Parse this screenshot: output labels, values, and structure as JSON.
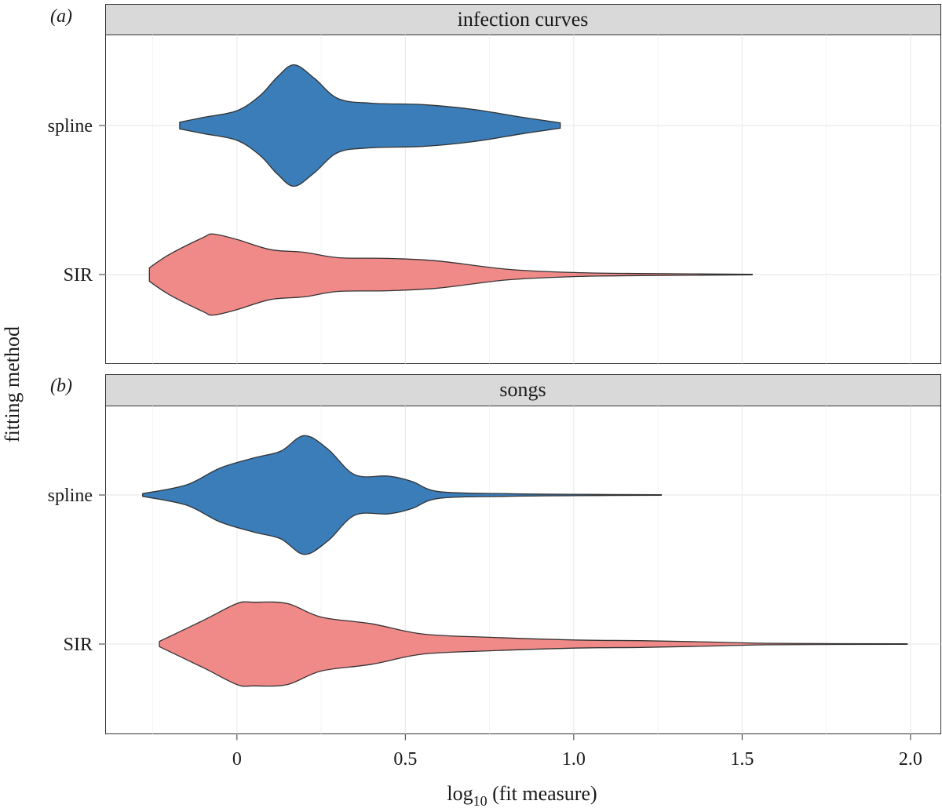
{
  "chart_data": {
    "type": "violin",
    "orientation": "horizontal",
    "xlabel_parts": {
      "prefix": "log",
      "subscript": "10",
      "suffix": " (fit measure)"
    },
    "ylabel": "fitting method",
    "x_ticks": [
      0,
      0.5,
      1.0,
      1.5,
      2.0
    ],
    "x_tick_labels": [
      "0",
      "0.5",
      "1.0",
      "1.5",
      "2.0"
    ],
    "xlim": [
      -0.39,
      2.09
    ],
    "categories": [
      "spline",
      "SIR"
    ],
    "colors": {
      "spline": "#3a7db8",
      "SIR": "#f08a89",
      "outline": "#333333",
      "strip": "#d9d9d9",
      "grid": "#ebebeb"
    },
    "panels": [
      {
        "panel_label": "(a)",
        "title": "infection curves",
        "violins": [
          {
            "category": "spline",
            "min": -0.17,
            "max": 0.96,
            "profile": [
              [
                -0.17,
                0.05
              ],
              [
                -0.1,
                0.12
              ],
              [
                0.0,
                0.22
              ],
              [
                0.07,
                0.45
              ],
              [
                0.12,
                0.72
              ],
              [
                0.17,
                0.9
              ],
              [
                0.23,
                0.7
              ],
              [
                0.3,
                0.4
              ],
              [
                0.4,
                0.33
              ],
              [
                0.55,
                0.31
              ],
              [
                0.7,
                0.24
              ],
              [
                0.85,
                0.12
              ],
              [
                0.96,
                0.04
              ]
            ]
          },
          {
            "category": "SIR",
            "min": -0.26,
            "max": 1.53,
            "profile": [
              [
                -0.26,
                0.1
              ],
              [
                -0.2,
                0.3
              ],
              [
                -0.1,
                0.55
              ],
              [
                -0.07,
                0.6
              ],
              [
                0.0,
                0.52
              ],
              [
                0.1,
                0.37
              ],
              [
                0.2,
                0.33
              ],
              [
                0.3,
                0.25
              ],
              [
                0.45,
                0.24
              ],
              [
                0.6,
                0.2
              ],
              [
                0.8,
                0.08
              ],
              [
                1.0,
                0.03
              ],
              [
                1.2,
                0.015
              ],
              [
                1.53,
                0.005
              ]
            ]
          }
        ]
      },
      {
        "panel_label": "(b)",
        "title": "songs",
        "violins": [
          {
            "category": "spline",
            "min": -0.28,
            "max": 1.26,
            "profile": [
              [
                -0.28,
                0.02
              ],
              [
                -0.15,
                0.15
              ],
              [
                -0.05,
                0.4
              ],
              [
                0.05,
                0.55
              ],
              [
                0.13,
                0.65
              ],
              [
                0.2,
                0.88
              ],
              [
                0.27,
                0.68
              ],
              [
                0.35,
                0.3
              ],
              [
                0.45,
                0.28
              ],
              [
                0.52,
                0.2
              ],
              [
                0.6,
                0.05
              ],
              [
                0.8,
                0.02
              ],
              [
                1.0,
                0.01
              ],
              [
                1.26,
                0.003
              ]
            ]
          },
          {
            "category": "SIR",
            "min": -0.23,
            "max": 1.99,
            "profile": [
              [
                -0.23,
                0.04
              ],
              [
                -0.1,
                0.35
              ],
              [
                0.0,
                0.6
              ],
              [
                0.05,
                0.62
              ],
              [
                0.15,
                0.6
              ],
              [
                0.25,
                0.4
              ],
              [
                0.4,
                0.3
              ],
              [
                0.55,
                0.15
              ],
              [
                0.75,
                0.1
              ],
              [
                1.0,
                0.06
              ],
              [
                1.2,
                0.05
              ],
              [
                1.4,
                0.03
              ],
              [
                1.6,
                0.01
              ],
              [
                1.99,
                0.003
              ]
            ]
          }
        ]
      }
    ]
  }
}
